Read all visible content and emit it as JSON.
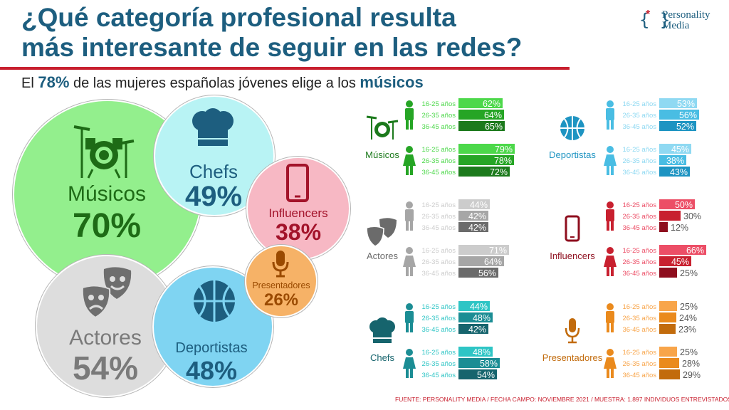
{
  "title_line1": "¿Qué categoría profesional resulta",
  "title_line2": "más interesante de seguir en las redes?",
  "logo_line1": "Personality",
  "logo_line2": "Media",
  "subtitle": {
    "pre": "El ",
    "pct": "78%",
    "mid": " de las mujeres españolas jóvenes elige a los ",
    "cat": "músicos"
  },
  "footer": "FUENTE: PERSONALITY MEDIA / FECHA CAMPO: NOVIEMBRE 2021 / MUESTRA: 1.897 INDIVIDUOS ENTREVISTADOS.",
  "bubbles": [
    {
      "name": "Músicos",
      "value": "70%",
      "fill": "#93ef8d",
      "ink": "#1e6b16",
      "icon": "drums-icon"
    },
    {
      "name": "Chefs",
      "value": "49%",
      "fill": "#b8f3f4",
      "ink": "#1d5e7f",
      "icon": "chef-hat-icon"
    },
    {
      "name": "Influencers",
      "value": "38%",
      "fill": "#f7b8c4",
      "ink": "#a3132a",
      "icon": "phone-icon"
    },
    {
      "name": "Presentadores",
      "value": "26%",
      "fill": "#f6b267",
      "ink": "#9a4a00",
      "icon": "microphone-icon"
    },
    {
      "name": "Actores",
      "value": "54%",
      "fill": "#dddddd",
      "ink": "#6e6e6e",
      "icon": "theater-masks-icon"
    },
    {
      "name": "Deportistas",
      "value": "48%",
      "fill": "#7fd4f2",
      "ink": "#1d5e7f",
      "icon": "basketball-icon"
    }
  ],
  "chart_data": {
    "type": "bar",
    "orientation": "horizontal",
    "age_groups": [
      "16-25 años",
      "26-35 años",
      "36-45 años"
    ],
    "genders": [
      "hombres",
      "mujeres"
    ],
    "categories": [
      {
        "name": "Músicos",
        "icon": "drums-icon",
        "male": [
          62,
          64,
          65
        ],
        "female": [
          79,
          78,
          72
        ],
        "colors": [
          "#4cd84a",
          "#26a525",
          "#1c7a1c"
        ],
        "label_ink": "#ffffff"
      },
      {
        "name": "Deportistas",
        "icon": "basketball-icon",
        "male": [
          53,
          56,
          52
        ],
        "female": [
          45,
          38,
          43
        ],
        "colors": [
          "#8fd9f2",
          "#49bde3",
          "#1e94c2"
        ],
        "label_ink": "#ffffff"
      },
      {
        "name": "Actores",
        "icon": "theater-masks-icon",
        "male": [
          44,
          42,
          42
        ],
        "female": [
          71,
          64,
          56
        ],
        "colors": [
          "#cccccc",
          "#a6a6a6",
          "#6b6b6b"
        ],
        "label_ink": "#ffffff"
      },
      {
        "name": "Influencers",
        "icon": "phone-icon",
        "male": [
          50,
          30,
          12
        ],
        "female": [
          66,
          45,
          25
        ],
        "colors": [
          "#ec4e66",
          "#c8202f",
          "#8e0e1e"
        ],
        "label_ink": "#ffffff"
      },
      {
        "name": "Chefs",
        "icon": "chef-hat-icon",
        "male": [
          44,
          48,
          42
        ],
        "female": [
          48,
          58,
          54
        ],
        "colors": [
          "#2ec5c5",
          "#1b8d94",
          "#16646d"
        ],
        "label_ink": "#ffffff"
      },
      {
        "name": "Presentadores",
        "icon": "microphone-icon",
        "male": [
          25,
          24,
          23
        ],
        "female": [
          25,
          28,
          29
        ],
        "colors": [
          "#f8a54a",
          "#ea8a1d",
          "#c26b0c"
        ],
        "label_ink": "#9a4a00"
      }
    ]
  }
}
